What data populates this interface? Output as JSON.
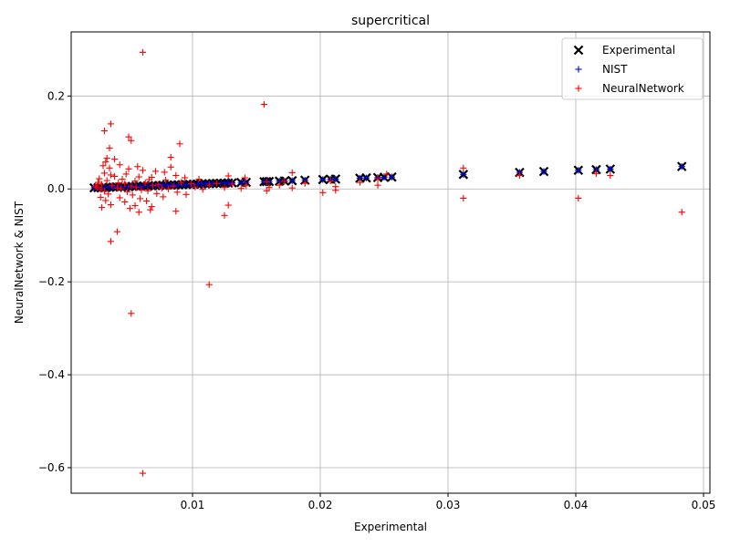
{
  "chart_data": {
    "type": "scatter",
    "title": "supercritical",
    "xlabel": "Experimental",
    "ylabel": "NeuralNetwork & NIST",
    "xlim": [
      0.0005,
      0.0505
    ],
    "ylim": [
      -0.655,
      0.338
    ],
    "xticks": [
      0.01,
      0.02,
      0.03,
      0.04,
      0.05
    ],
    "xtick_labels": [
      "0.01",
      "0.02",
      "0.03",
      "0.04",
      "0.05"
    ],
    "yticks": [
      -0.6,
      -0.4,
      -0.2,
      0.0,
      0.2
    ],
    "ytick_labels": [
      "−0.6",
      "−0.4",
      "−0.2",
      "0.0",
      "0.2"
    ],
    "grid": true,
    "legend_position": "top-right",
    "series": [
      {
        "name": "Experimental",
        "marker": "x",
        "color": "#000000",
        "points": [
          [
            0.0023,
            0.0023
          ],
          [
            0.0026,
            0.0026
          ],
          [
            0.0029,
            0.0029
          ],
          [
            0.0032,
            0.0032
          ],
          [
            0.0035,
            0.0035
          ],
          [
            0.0038,
            0.0038
          ],
          [
            0.0041,
            0.0041
          ],
          [
            0.0044,
            0.0044
          ],
          [
            0.0047,
            0.0047
          ],
          [
            0.005,
            0.005
          ],
          [
            0.0053,
            0.0053
          ],
          [
            0.0056,
            0.0056
          ],
          [
            0.0059,
            0.0059
          ],
          [
            0.0062,
            0.0062
          ],
          [
            0.0065,
            0.0065
          ],
          [
            0.0068,
            0.0068
          ],
          [
            0.0071,
            0.0071
          ],
          [
            0.0074,
            0.0074
          ],
          [
            0.0077,
            0.0077
          ],
          [
            0.008,
            0.008
          ],
          [
            0.0083,
            0.0083
          ],
          [
            0.0086,
            0.0086
          ],
          [
            0.0089,
            0.0089
          ],
          [
            0.0092,
            0.0092
          ],
          [
            0.0095,
            0.0095
          ],
          [
            0.0098,
            0.0098
          ],
          [
            0.0101,
            0.0101
          ],
          [
            0.0104,
            0.0104
          ],
          [
            0.0107,
            0.0107
          ],
          [
            0.011,
            0.011
          ],
          [
            0.0113,
            0.0113
          ],
          [
            0.0116,
            0.0116
          ],
          [
            0.0119,
            0.0119
          ],
          [
            0.0122,
            0.0122
          ],
          [
            0.0125,
            0.0125
          ],
          [
            0.0128,
            0.0128
          ],
          [
            0.0131,
            0.0131
          ],
          [
            0.0138,
            0.0138
          ],
          [
            0.0142,
            0.0142
          ],
          [
            0.0156,
            0.0156
          ],
          [
            0.0158,
            0.0158
          ],
          [
            0.016,
            0.016
          ],
          [
            0.0168,
            0.0168
          ],
          [
            0.0172,
            0.0172
          ],
          [
            0.0178,
            0.0178
          ],
          [
            0.0188,
            0.0188
          ],
          [
            0.0202,
            0.0202
          ],
          [
            0.0208,
            0.0208
          ],
          [
            0.0212,
            0.0212
          ],
          [
            0.0231,
            0.0231
          ],
          [
            0.0236,
            0.0236
          ],
          [
            0.0245,
            0.0245
          ],
          [
            0.025,
            0.025
          ],
          [
            0.0256,
            0.0256
          ],
          [
            0.0312,
            0.0312
          ],
          [
            0.0356,
            0.0356
          ],
          [
            0.0375,
            0.0375
          ],
          [
            0.0402,
            0.0402
          ],
          [
            0.0416,
            0.0416
          ],
          [
            0.0427,
            0.0427
          ],
          [
            0.0483,
            0.0483
          ]
        ]
      },
      {
        "name": "NIST",
        "marker": "+",
        "color": "#0000ff",
        "points": [
          [
            0.0023,
            0.0023
          ],
          [
            0.0026,
            0.0026
          ],
          [
            0.0029,
            0.0029
          ],
          [
            0.0032,
            0.0032
          ],
          [
            0.0035,
            0.0035
          ],
          [
            0.0038,
            0.0038
          ],
          [
            0.0041,
            0.0041
          ],
          [
            0.0044,
            0.0044
          ],
          [
            0.0047,
            0.0047
          ],
          [
            0.005,
            0.005
          ],
          [
            0.0053,
            0.0053
          ],
          [
            0.0056,
            0.0056
          ],
          [
            0.0059,
            0.0059
          ],
          [
            0.0062,
            0.0062
          ],
          [
            0.0065,
            0.0065
          ],
          [
            0.0068,
            0.0068
          ],
          [
            0.0071,
            0.0071
          ],
          [
            0.0074,
            0.0074
          ],
          [
            0.0077,
            0.0077
          ],
          [
            0.008,
            0.008
          ],
          [
            0.0083,
            0.0083
          ],
          [
            0.0086,
            0.0086
          ],
          [
            0.0089,
            0.0089
          ],
          [
            0.0092,
            0.0092
          ],
          [
            0.0095,
            0.0095
          ],
          [
            0.0098,
            0.0098
          ],
          [
            0.0101,
            0.0101
          ],
          [
            0.0104,
            0.0104
          ],
          [
            0.0107,
            0.0107
          ],
          [
            0.011,
            0.011
          ],
          [
            0.0113,
            0.0113
          ],
          [
            0.0116,
            0.0116
          ],
          [
            0.0119,
            0.0119
          ],
          [
            0.0122,
            0.0122
          ],
          [
            0.0125,
            0.0125
          ],
          [
            0.0128,
            0.0128
          ],
          [
            0.0131,
            0.0131
          ],
          [
            0.0138,
            0.0138
          ],
          [
            0.0142,
            0.0142
          ],
          [
            0.0156,
            0.0156
          ],
          [
            0.0158,
            0.0158
          ],
          [
            0.016,
            0.016
          ],
          [
            0.0168,
            0.0168
          ],
          [
            0.0172,
            0.0172
          ],
          [
            0.0178,
            0.0178
          ],
          [
            0.0188,
            0.0188
          ],
          [
            0.0202,
            0.0202
          ],
          [
            0.0208,
            0.0208
          ],
          [
            0.0212,
            0.0212
          ],
          [
            0.0231,
            0.0231
          ],
          [
            0.0236,
            0.0236
          ],
          [
            0.0245,
            0.0245
          ],
          [
            0.025,
            0.025
          ],
          [
            0.0256,
            0.0256
          ],
          [
            0.0312,
            0.0312
          ],
          [
            0.0356,
            0.0356
          ],
          [
            0.0375,
            0.0375
          ],
          [
            0.0402,
            0.0402
          ],
          [
            0.0416,
            0.0416
          ],
          [
            0.0427,
            0.0427
          ],
          [
            0.0483,
            0.0483
          ]
        ]
      },
      {
        "name": "NeuralNetwork",
        "marker": "+",
        "color": "#ff0000",
        "points": [
          [
            0.0061,
            0.294
          ],
          [
            0.0156,
            0.182
          ],
          [
            0.0036,
            0.14
          ],
          [
            0.0031,
            0.125
          ],
          [
            0.005,
            0.112
          ],
          [
            0.0052,
            0.104
          ],
          [
            0.009,
            0.097
          ],
          [
            0.0035,
            0.088
          ],
          [
            0.0083,
            0.068
          ],
          [
            0.0033,
            0.066
          ],
          [
            0.0039,
            0.064
          ],
          [
            0.0032,
            0.058
          ],
          [
            0.0043,
            0.052
          ],
          [
            0.003,
            0.05
          ],
          [
            0.0057,
            0.048
          ],
          [
            0.0083,
            0.047
          ],
          [
            0.0035,
            0.045
          ],
          [
            0.005,
            0.043
          ],
          [
            0.0061,
            0.04
          ],
          [
            0.0071,
            0.038
          ],
          [
            0.0078,
            0.036
          ],
          [
            0.0178,
            0.035
          ],
          [
            0.0031,
            0.034
          ],
          [
            0.0048,
            0.032
          ],
          [
            0.0252,
            0.032
          ],
          [
            0.0036,
            0.03
          ],
          [
            0.0087,
            0.029
          ],
          [
            0.0128,
            0.028
          ],
          [
            0.0312,
            0.045
          ],
          [
            0.0356,
            0.029
          ],
          [
            0.0416,
            0.033
          ],
          [
            0.0427,
            0.029
          ],
          [
            0.0039,
            0.027
          ],
          [
            0.0058,
            0.026
          ],
          [
            0.0068,
            0.025
          ],
          [
            0.0094,
            0.024
          ],
          [
            0.0141,
            0.024
          ],
          [
            0.0027,
            0.022
          ],
          [
            0.0045,
            0.021
          ],
          [
            0.0066,
            0.02
          ],
          [
            0.0105,
            0.021
          ],
          [
            0.0245,
            0.022
          ],
          [
            0.0033,
            0.018
          ],
          [
            0.0055,
            0.017
          ],
          [
            0.0079,
            0.019
          ],
          [
            0.0208,
            0.017
          ],
          [
            0.0158,
            0.015
          ],
          [
            0.0172,
            0.016
          ],
          [
            0.0026,
            0.014
          ],
          [
            0.0042,
            0.013
          ],
          [
            0.0063,
            0.013
          ],
          [
            0.0091,
            0.014
          ],
          [
            0.0119,
            0.012
          ],
          [
            0.0231,
            0.014
          ],
          [
            0.0029,
            0.01
          ],
          [
            0.0047,
            0.011
          ],
          [
            0.0073,
            0.01
          ],
          [
            0.0099,
            0.011
          ],
          [
            0.0131,
            0.01
          ],
          [
            0.0188,
            0.012
          ],
          [
            0.0024,
            0.006
          ],
          [
            0.0037,
            0.007
          ],
          [
            0.0052,
            0.006
          ],
          [
            0.0069,
            0.007
          ],
          [
            0.0085,
            0.006
          ],
          [
            0.0113,
            0.008
          ],
          [
            0.0142,
            0.007
          ],
          [
            0.0168,
            0.008
          ],
          [
            0.0025,
            0.003
          ],
          [
            0.0041,
            0.002
          ],
          [
            0.0056,
            0.003
          ],
          [
            0.0076,
            0.002
          ],
          [
            0.0102,
            0.004
          ],
          [
            0.0125,
            0.003
          ],
          [
            0.016,
            0.003
          ],
          [
            0.0212,
            0.005
          ],
          [
            0.0028,
            -0.001
          ],
          [
            0.0044,
            0.0
          ],
          [
            0.006,
            -0.002
          ],
          [
            0.0081,
            0.0
          ],
          [
            0.0108,
            -0.001
          ],
          [
            0.0138,
            0.001
          ],
          [
            0.0178,
            0.002
          ],
          [
            0.0245,
            0.008
          ],
          [
            0.0031,
            -0.005
          ],
          [
            0.0049,
            -0.006
          ],
          [
            0.0065,
            -0.004
          ],
          [
            0.0088,
            -0.007
          ],
          [
            0.0158,
            -0.004
          ],
          [
            0.0202,
            -0.008
          ],
          [
            0.0212,
            -0.003
          ],
          [
            0.0034,
            -0.011
          ],
          [
            0.0053,
            -0.013
          ],
          [
            0.0072,
            -0.01
          ],
          [
            0.0095,
            -0.012
          ],
          [
            0.0028,
            -0.018
          ],
          [
            0.0043,
            -0.019
          ],
          [
            0.0059,
            -0.021
          ],
          [
            0.0077,
            -0.017
          ],
          [
            0.0312,
            -0.02
          ],
          [
            0.0402,
            -0.02
          ],
          [
            0.0032,
            -0.025
          ],
          [
            0.0047,
            -0.028
          ],
          [
            0.0064,
            -0.026
          ],
          [
            0.0128,
            -0.035
          ],
          [
            0.0036,
            -0.034
          ],
          [
            0.0055,
            -0.036
          ],
          [
            0.0068,
            -0.038
          ],
          [
            0.0029,
            -0.04
          ],
          [
            0.0051,
            -0.042
          ],
          [
            0.0067,
            -0.045
          ],
          [
            0.0058,
            -0.05
          ],
          [
            0.0087,
            -0.048
          ],
          [
            0.0483,
            -0.05
          ],
          [
            0.0125,
            -0.057
          ],
          [
            0.0041,
            -0.092
          ],
          [
            0.0036,
            -0.113
          ],
          [
            0.0113,
            -0.206
          ],
          [
            0.0052,
            -0.268
          ],
          [
            0.0061,
            -0.612
          ]
        ]
      }
    ]
  }
}
